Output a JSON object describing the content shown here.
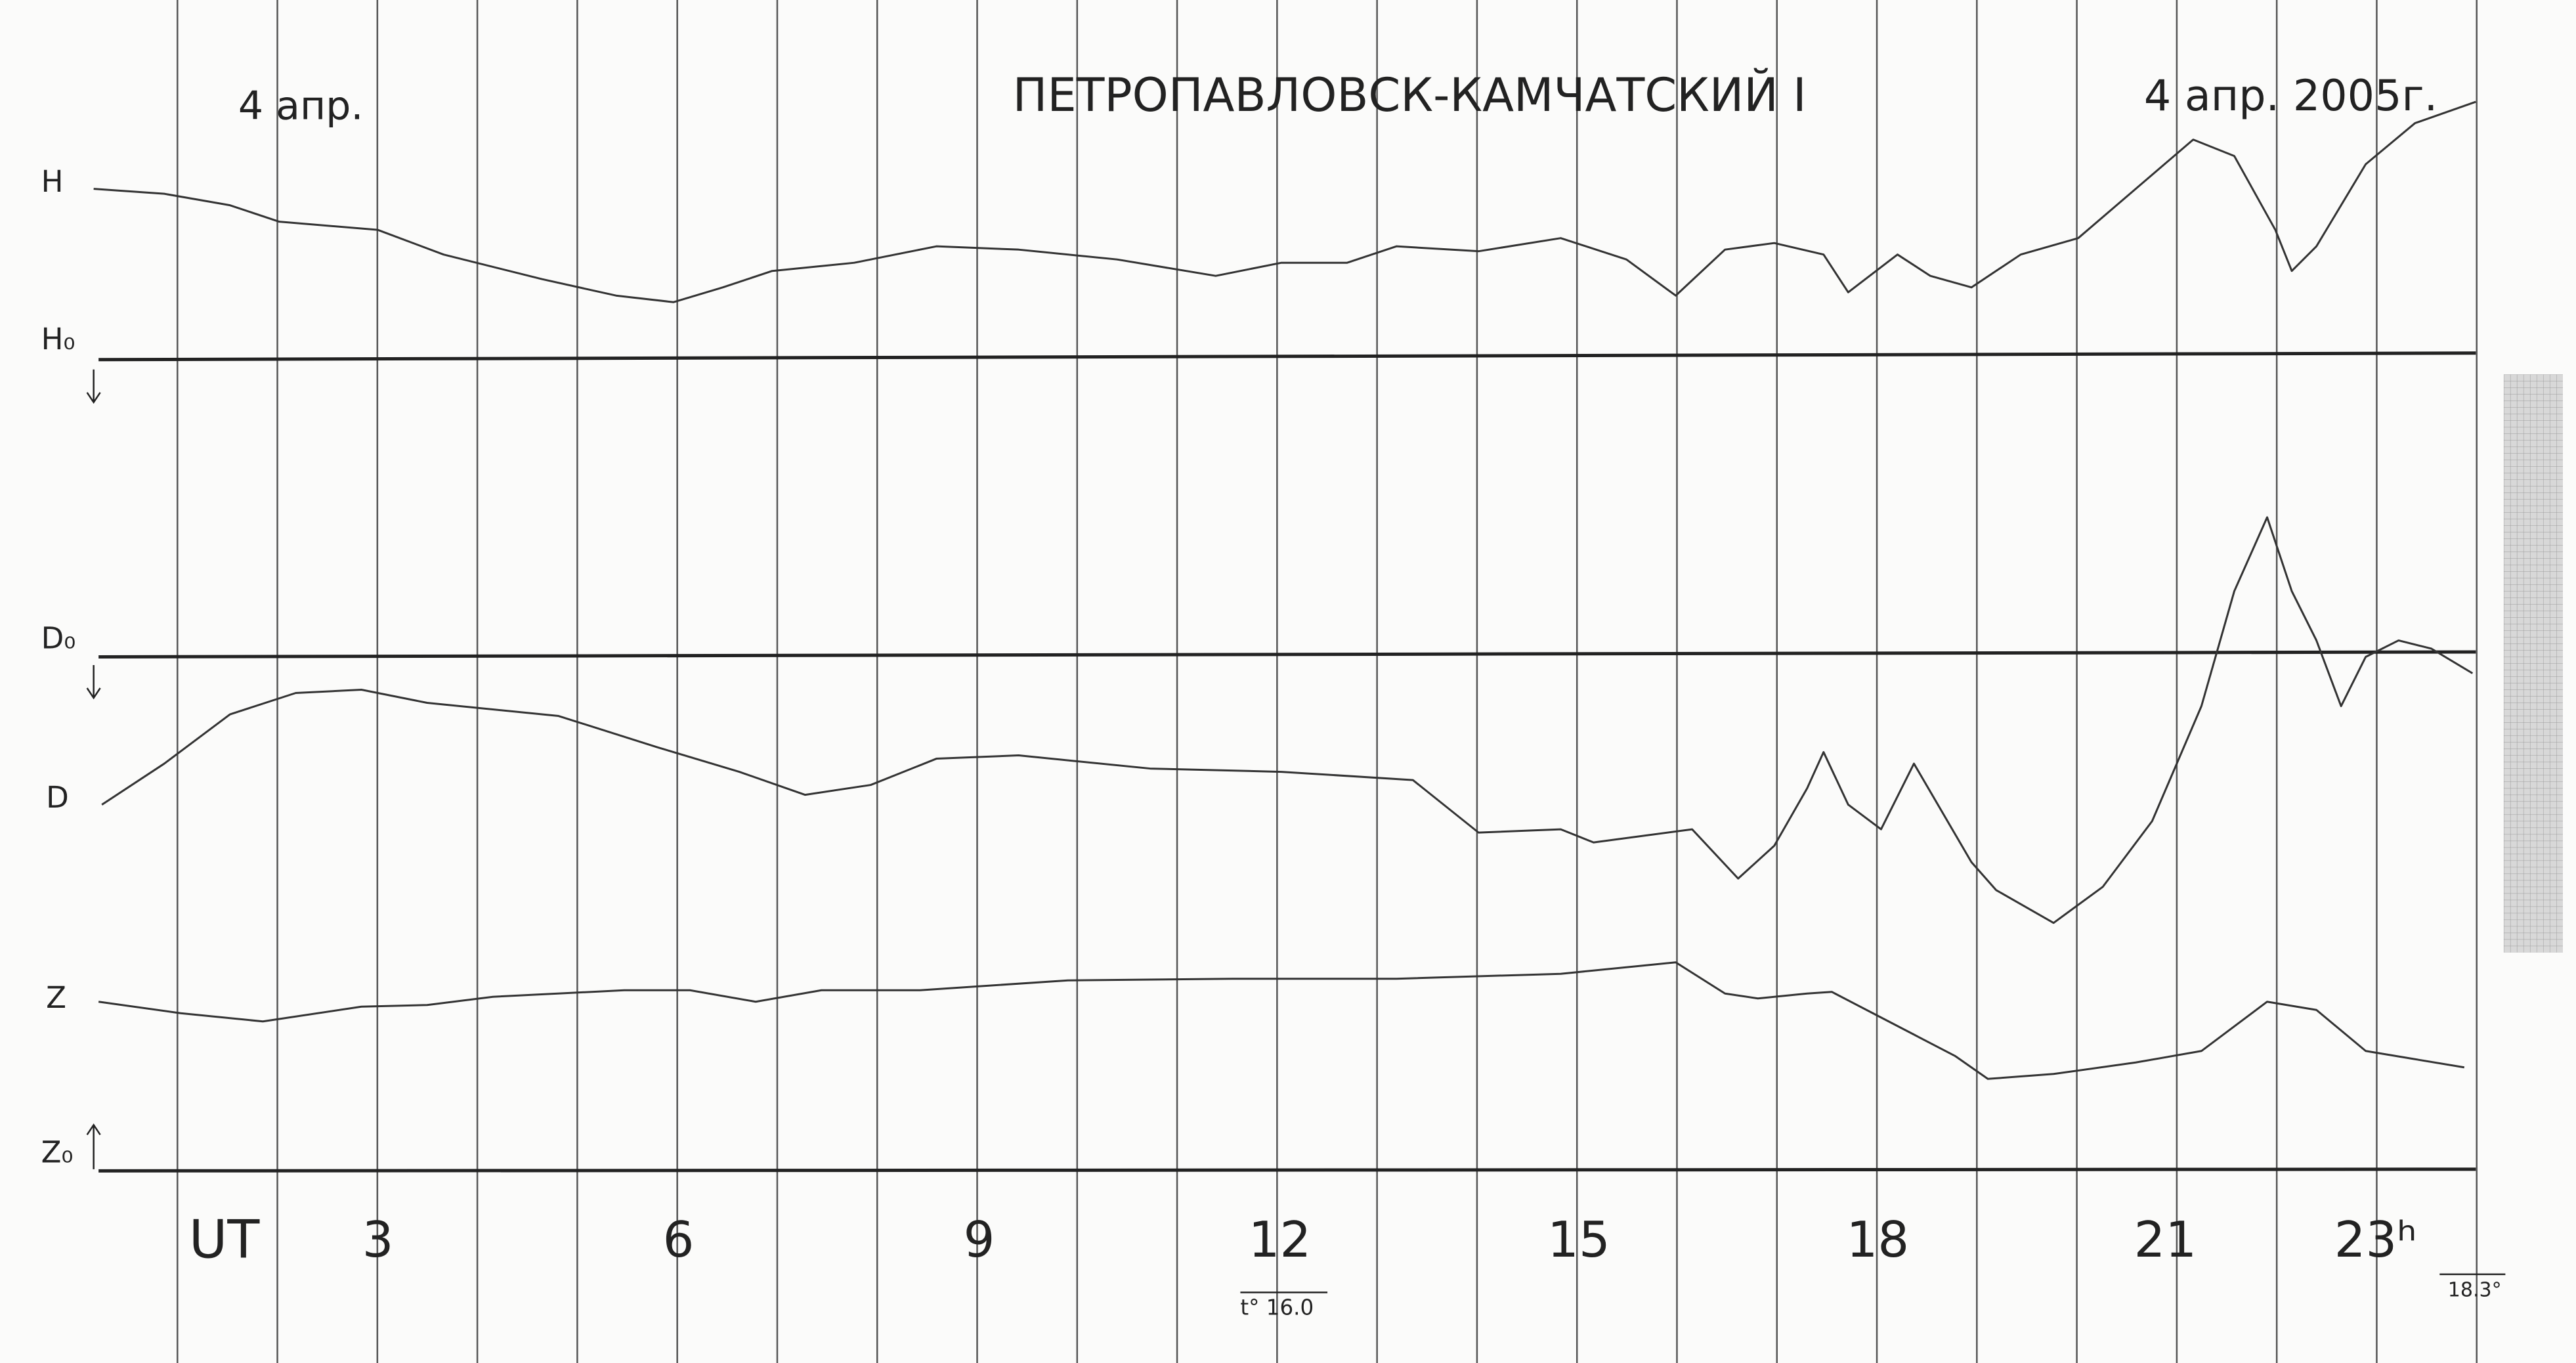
{
  "header": {
    "date_left": "4 апр.",
    "station": "ПЕТРОПАВЛОВСК-КАМЧАТСКИЙ I",
    "date_right": "4 апр. 2005г."
  },
  "trace_labels": {
    "H": "H",
    "H0": "H₀",
    "D0": "D₀",
    "D": "D",
    "Z": "Z",
    "Z0": "Z₀"
  },
  "time_axis": {
    "label": "UT",
    "hours": [
      "3",
      "6",
      "9",
      "12",
      "15",
      "18",
      "21",
      "23ʰ"
    ]
  },
  "temperatures": {
    "start": "t° 16.0",
    "end": "18.3°"
  }
}
